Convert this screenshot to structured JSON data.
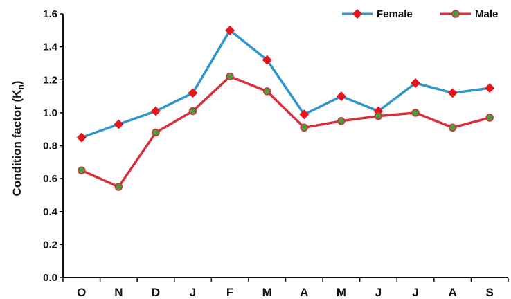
{
  "chart_data": {
    "type": "line",
    "categories": [
      "O",
      "N",
      "D",
      "J",
      "F",
      "M",
      "A",
      "M",
      "J",
      "J",
      "A",
      "S"
    ],
    "series": [
      {
        "name": "Female",
        "values": [
          0.85,
          0.93,
          1.01,
          1.12,
          1.5,
          1.32,
          0.99,
          1.1,
          1.01,
          1.18,
          1.12,
          1.15
        ],
        "line_color": "#2e96c8",
        "marker_color": "#e4161b",
        "marker": "diamond"
      },
      {
        "name": "Male",
        "values": [
          0.65,
          0.55,
          0.88,
          1.01,
          1.22,
          1.13,
          0.91,
          0.95,
          0.98,
          1.0,
          0.91,
          0.97
        ],
        "line_color": "#d6303a",
        "marker_color": "#4d9a3e",
        "marker": "circle"
      }
    ],
    "ylabel_main": "Condition factor (K",
    "ylabel_sub": "n",
    "ylabel_close": ")",
    "ylim": [
      0.0,
      1.6
    ],
    "yticks": [
      "0.0",
      "0.2",
      "0.4",
      "0.6",
      "0.8",
      "1.0",
      "1.2",
      "1.4",
      "1.6"
    ],
    "grid": false,
    "legend_position": "top-right"
  }
}
